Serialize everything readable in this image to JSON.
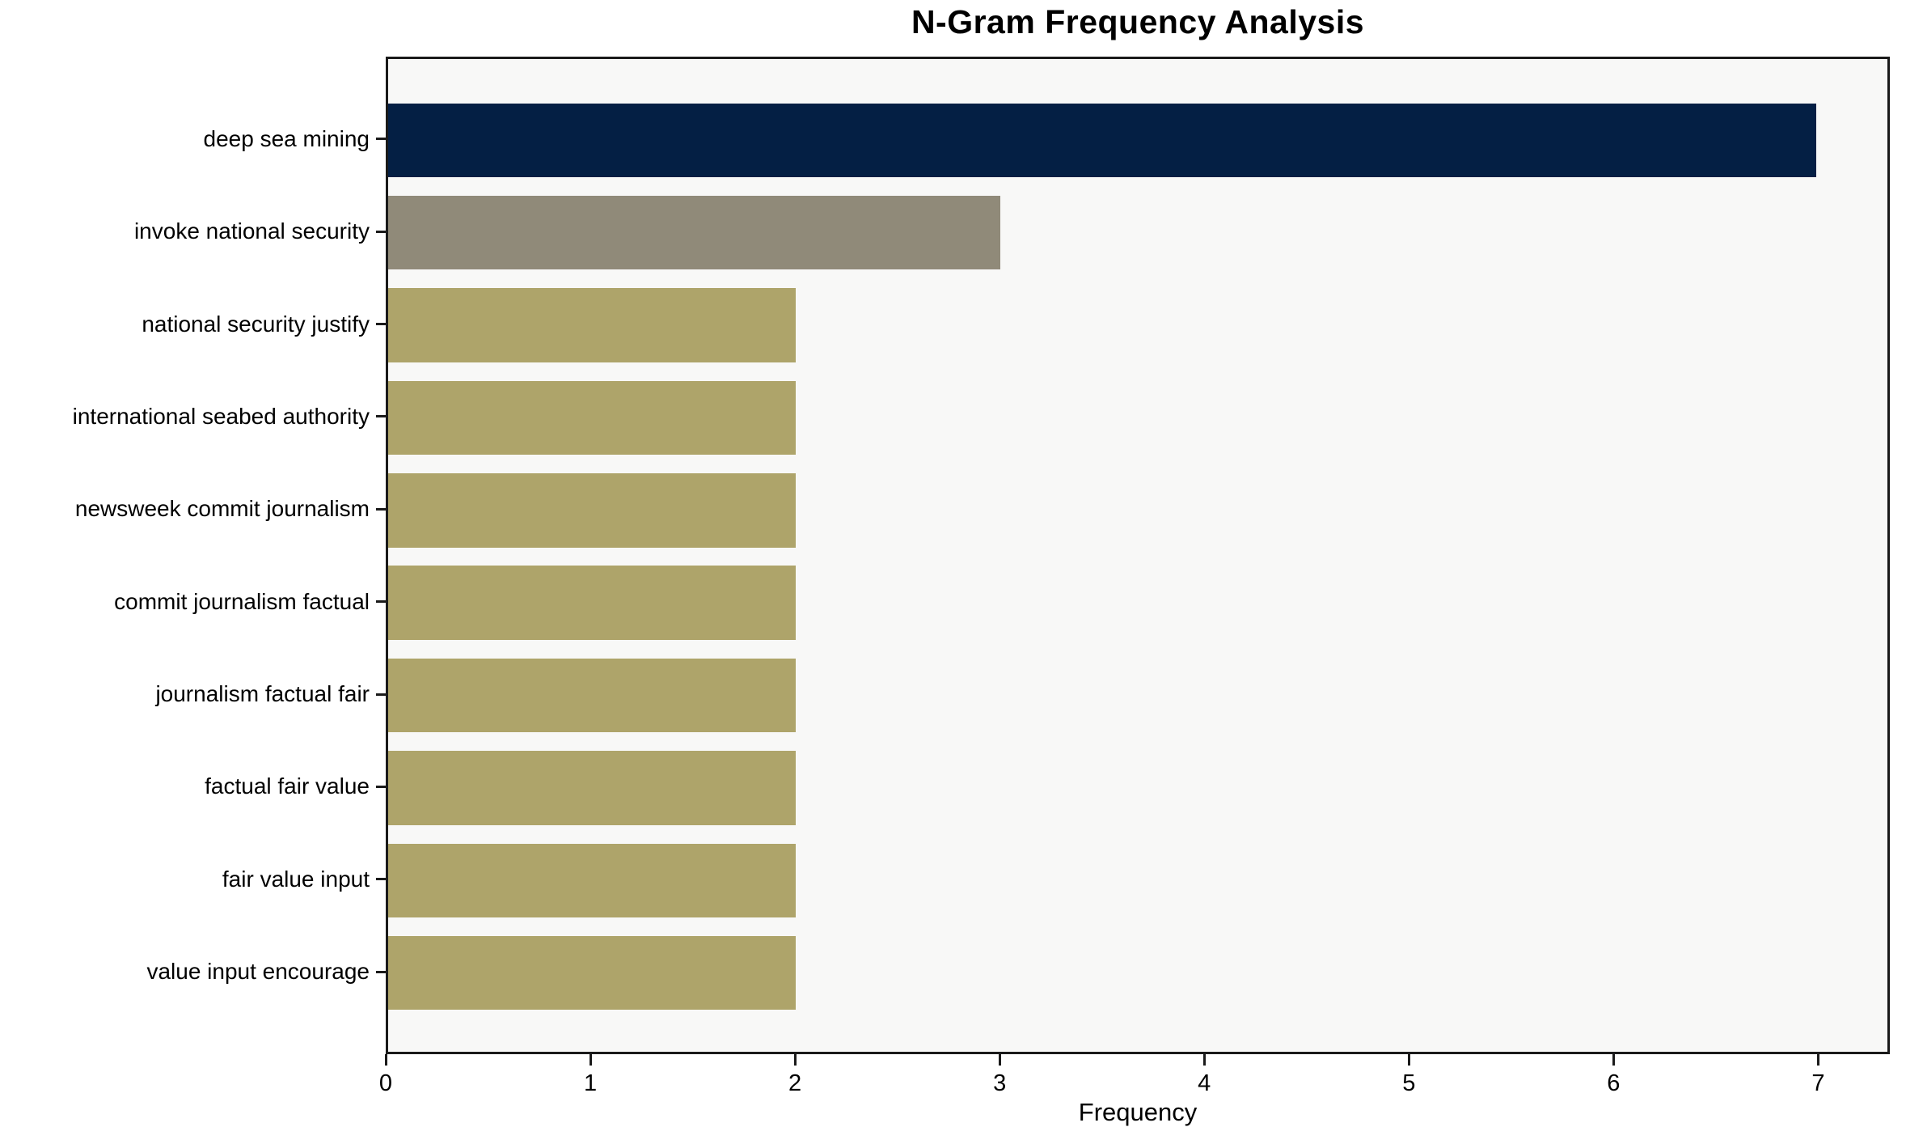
{
  "chart_data": {
    "type": "bar",
    "orientation": "horizontal",
    "title": "N-Gram Frequency Analysis",
    "xlabel": "Frequency",
    "ylabel": "",
    "categories": [
      "deep sea mining",
      "invoke national security",
      "national security justify",
      "international seabed authority",
      "newsweek commit journalism",
      "commit journalism factual",
      "journalism factual fair",
      "factual fair value",
      "fair value input",
      "value input encourage"
    ],
    "values": [
      7,
      3,
      2,
      2,
      2,
      2,
      2,
      2,
      2,
      2
    ],
    "bar_colors": [
      "#041f44",
      "#908a79",
      "#aea46a",
      "#aea46a",
      "#aea46a",
      "#aea46a",
      "#aea46a",
      "#aea46a",
      "#aea46a",
      "#aea46a"
    ],
    "x_ticks": [
      0,
      1,
      2,
      3,
      4,
      5,
      6,
      7
    ],
    "xlim": [
      0,
      7.35
    ],
    "grid": false,
    "legend": null,
    "plot_background": "#f8f8f7",
    "page_background": "#ffffff",
    "spine_color": "#1a1a1a",
    "text_color": "#000000"
  }
}
